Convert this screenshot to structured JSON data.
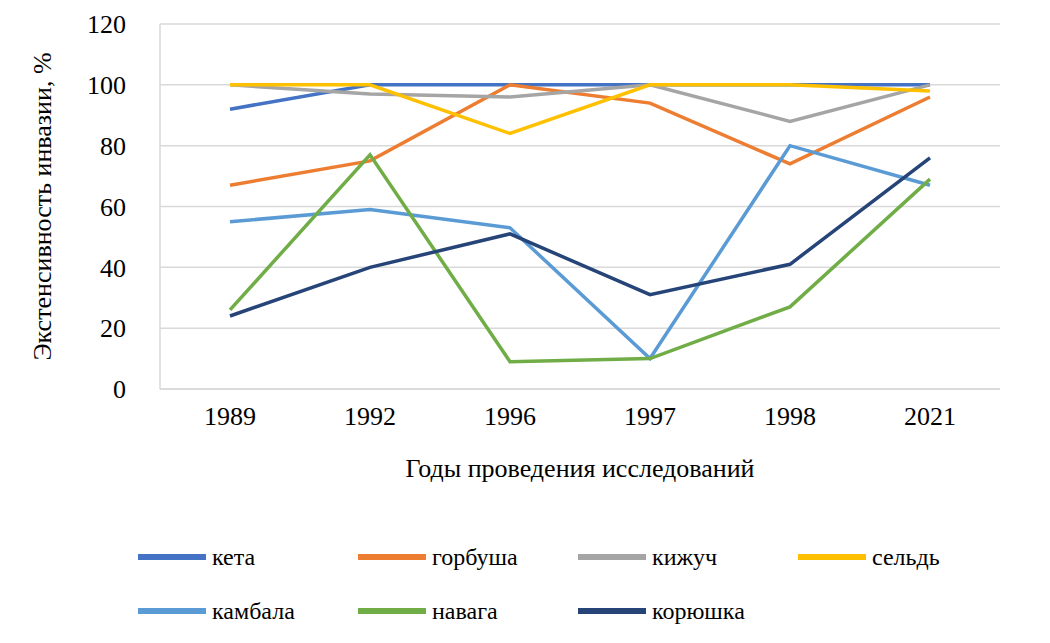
{
  "chart_data": {
    "type": "line",
    "x_label": "Годы проведения исследований",
    "y_label": "Экстенсивность инвазии, %",
    "categories": [
      "1989",
      "1992",
      "1996",
      "1997",
      "1998",
      "2021"
    ],
    "series": [
      {
        "name": "кета",
        "color": "#4472c4",
        "values": [
          92,
          100,
          100,
          100,
          100,
          100
        ]
      },
      {
        "name": "горбуша",
        "color": "#ed7d31",
        "values": [
          67,
          75,
          100,
          94,
          74,
          96
        ]
      },
      {
        "name": "кижуч",
        "color": "#a5a5a5",
        "values": [
          100,
          97,
          96,
          100,
          88,
          100
        ]
      },
      {
        "name": "сельдь",
        "color": "#ffc000",
        "values": [
          100,
          100,
          84,
          100,
          100,
          98
        ]
      },
      {
        "name": "камбала",
        "color": "#5b9bd5",
        "values": [
          55,
          59,
          53,
          10,
          80,
          67
        ]
      },
      {
        "name": "навага",
        "color": "#70ad47",
        "values": [
          26,
          77,
          9,
          10,
          27,
          69
        ]
      },
      {
        "name": "корюшка",
        "color": "#264478",
        "values": [
          24,
          40,
          51,
          31,
          41,
          76
        ]
      }
    ],
    "ylim": [
      0,
      120
    ],
    "yticks": [
      0,
      20,
      40,
      60,
      80,
      100,
      120
    ],
    "grid": true,
    "legend": "bottom"
  }
}
